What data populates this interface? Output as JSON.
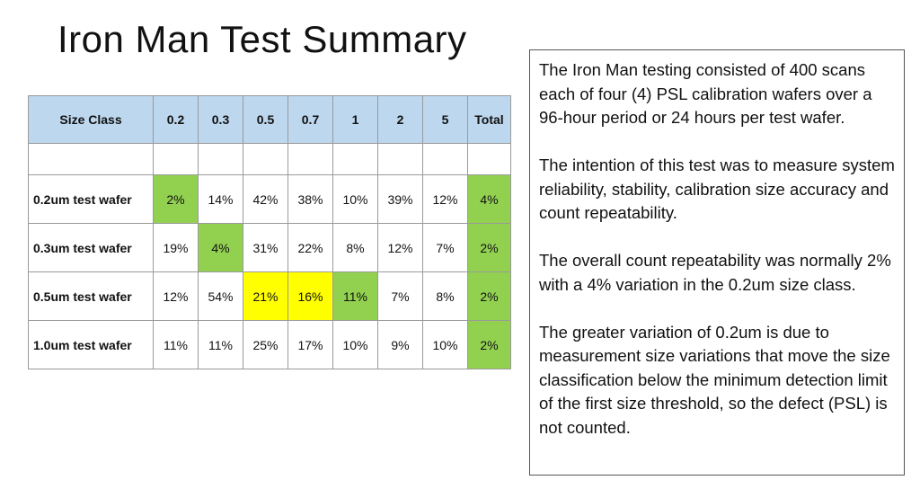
{
  "title": "Iron Man Test Summary",
  "table": {
    "headers": [
      "Size Class",
      "0.2",
      "0.3",
      "0.5",
      "0.7",
      "1",
      "2",
      "5",
      "Total"
    ],
    "rows": [
      {
        "label": "0.2um test wafer",
        "cells": [
          "2%",
          "14%",
          "42%",
          "38%",
          "10%",
          "39%",
          "12%",
          "4%"
        ],
        "highlight": [
          "green",
          "",
          "",
          "",
          "",
          "",
          "",
          "green"
        ]
      },
      {
        "label": "0.3um test wafer",
        "cells": [
          "19%",
          "4%",
          "31%",
          "22%",
          "8%",
          "12%",
          "7%",
          "2%"
        ],
        "highlight": [
          "",
          "green",
          "",
          "",
          "",
          "",
          "",
          "green"
        ]
      },
      {
        "label": "0.5um test wafer",
        "cells": [
          "12%",
          "54%",
          "21%",
          "16%",
          "11%",
          "7%",
          "8%",
          "2%"
        ],
        "highlight": [
          "",
          "",
          "yellow",
          "yellow",
          "green",
          "",
          "",
          "green"
        ]
      },
      {
        "label": "1.0um test wafer",
        "cells": [
          "11%",
          "11%",
          "25%",
          "17%",
          "10%",
          "9%",
          "10%",
          "2%"
        ],
        "highlight": [
          "",
          "",
          "",
          "",
          "",
          "",
          "",
          "green"
        ]
      }
    ],
    "colors": {
      "header": "#bdd7ee",
      "green": "#92d050",
      "yellow": "#ffff00"
    }
  },
  "description": {
    "paragraphs": [
      "The Iron Man testing consisted of 400 scans each of four (4) PSL calibration wafers over a 96-hour period or 24 hours per test wafer.",
      "The intention of this test was to measure system reliability, stability, calibration size accuracy and count repeatability.",
      "The overall count repeatability was normally 2% with a 4% variation in the 0.2um size class.",
      "The greater variation of 0.2um is due to measurement size variations that move the size classification below the minimum detection limit of the first size threshold, so the defect (PSL) is not counted."
    ]
  }
}
